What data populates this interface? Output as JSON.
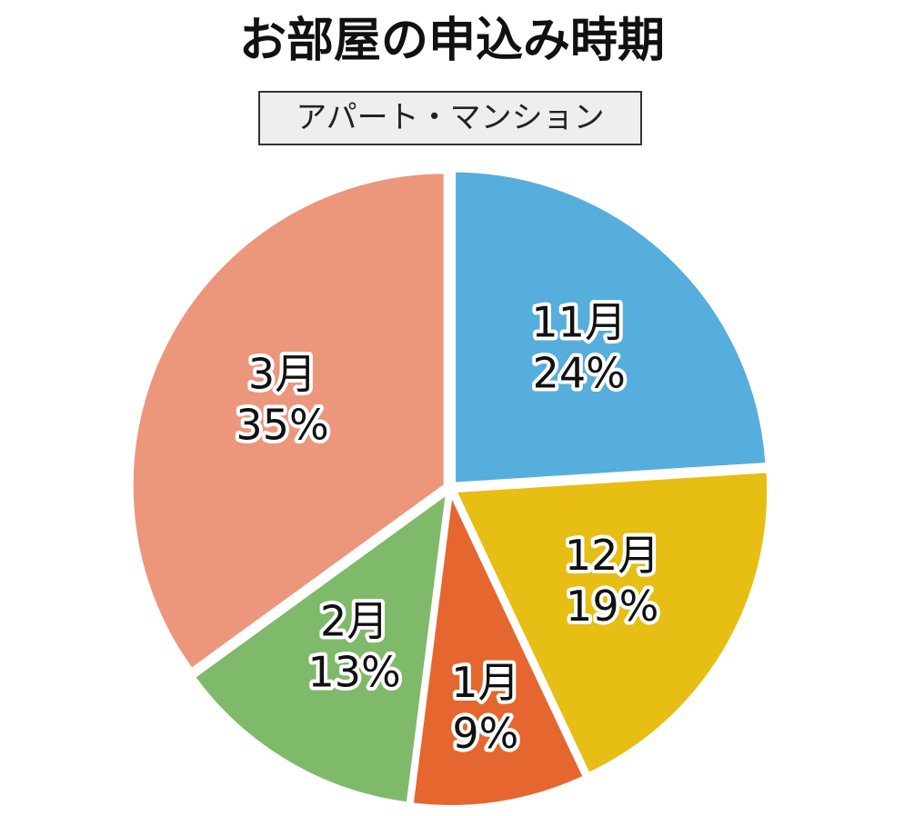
{
  "chart_data": {
    "type": "pie",
    "title": "お部屋の申込み時期",
    "subtitle": "アパート・マンション",
    "categories": [
      "11月",
      "12月",
      "1月",
      "2月",
      "3月"
    ],
    "values": [
      24,
      19,
      9,
      13,
      35
    ],
    "value_labels": [
      "24%",
      "19%",
      "9%",
      "13%",
      "35%"
    ],
    "colors": [
      "#55aedc",
      "#e6be14",
      "#e5672f",
      "#7fb96a",
      "#ec967c"
    ]
  }
}
